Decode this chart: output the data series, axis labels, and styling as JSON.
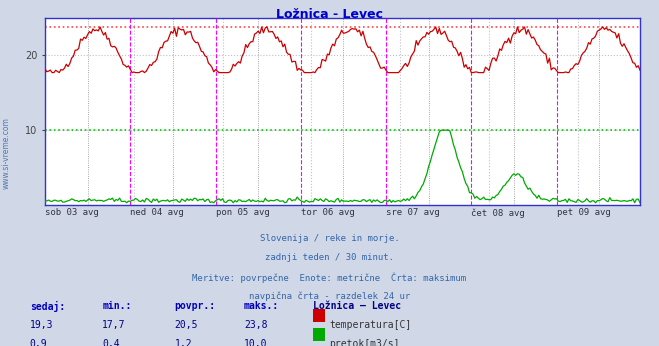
{
  "title": "Ložnica - Levec",
  "title_color": "#0000cc",
  "bg_color": "#d0d8e8",
  "plot_bg_color": "#ffffff",
  "grid_color": "#c0c0d0",
  "x_labels": [
    "sob 03 avg",
    "ned 04 avg",
    "pon 05 avg",
    "tor 06 avg",
    "sre 07 avg",
    "čet 08 avg",
    "pet 09 avg"
  ],
  "n_points": 336,
  "temp_color": "#cc0000",
  "flow_color": "#00aa00",
  "temp_max_line_color": "#ff4444",
  "flow_max_line_color": "#00cc00",
  "temp_max": 23.8,
  "flow_max": 10.0,
  "temp_min": 17.7,
  "flow_min": 0.4,
  "temp_avg": 20.5,
  "flow_avg": 1.2,
  "temp_current": 19.3,
  "flow_current": 0.9,
  "ylim_min": 0,
  "ylim_max": 25,
  "ytick_vals": [
    10,
    20
  ],
  "vline_color_day": "#ff00ff",
  "vline_color_half": "#888899",
  "border_color": "#3333cc",
  "subtitle_lines": [
    "Slovenija / reke in morje.",
    "zadnji teden / 30 minut.",
    "Meritve: povrpečne  Enote: metrične  Črta: maksimum",
    "navpična črta - razdelek 24 ur"
  ],
  "subtitle_color": "#3366aa",
  "table_header_color": "#0000bb",
  "table_value_color": "#000088",
  "watermark_color": "#5577aa",
  "legend_title": "Ložnica – Levec",
  "legend_title_color": "#000088"
}
